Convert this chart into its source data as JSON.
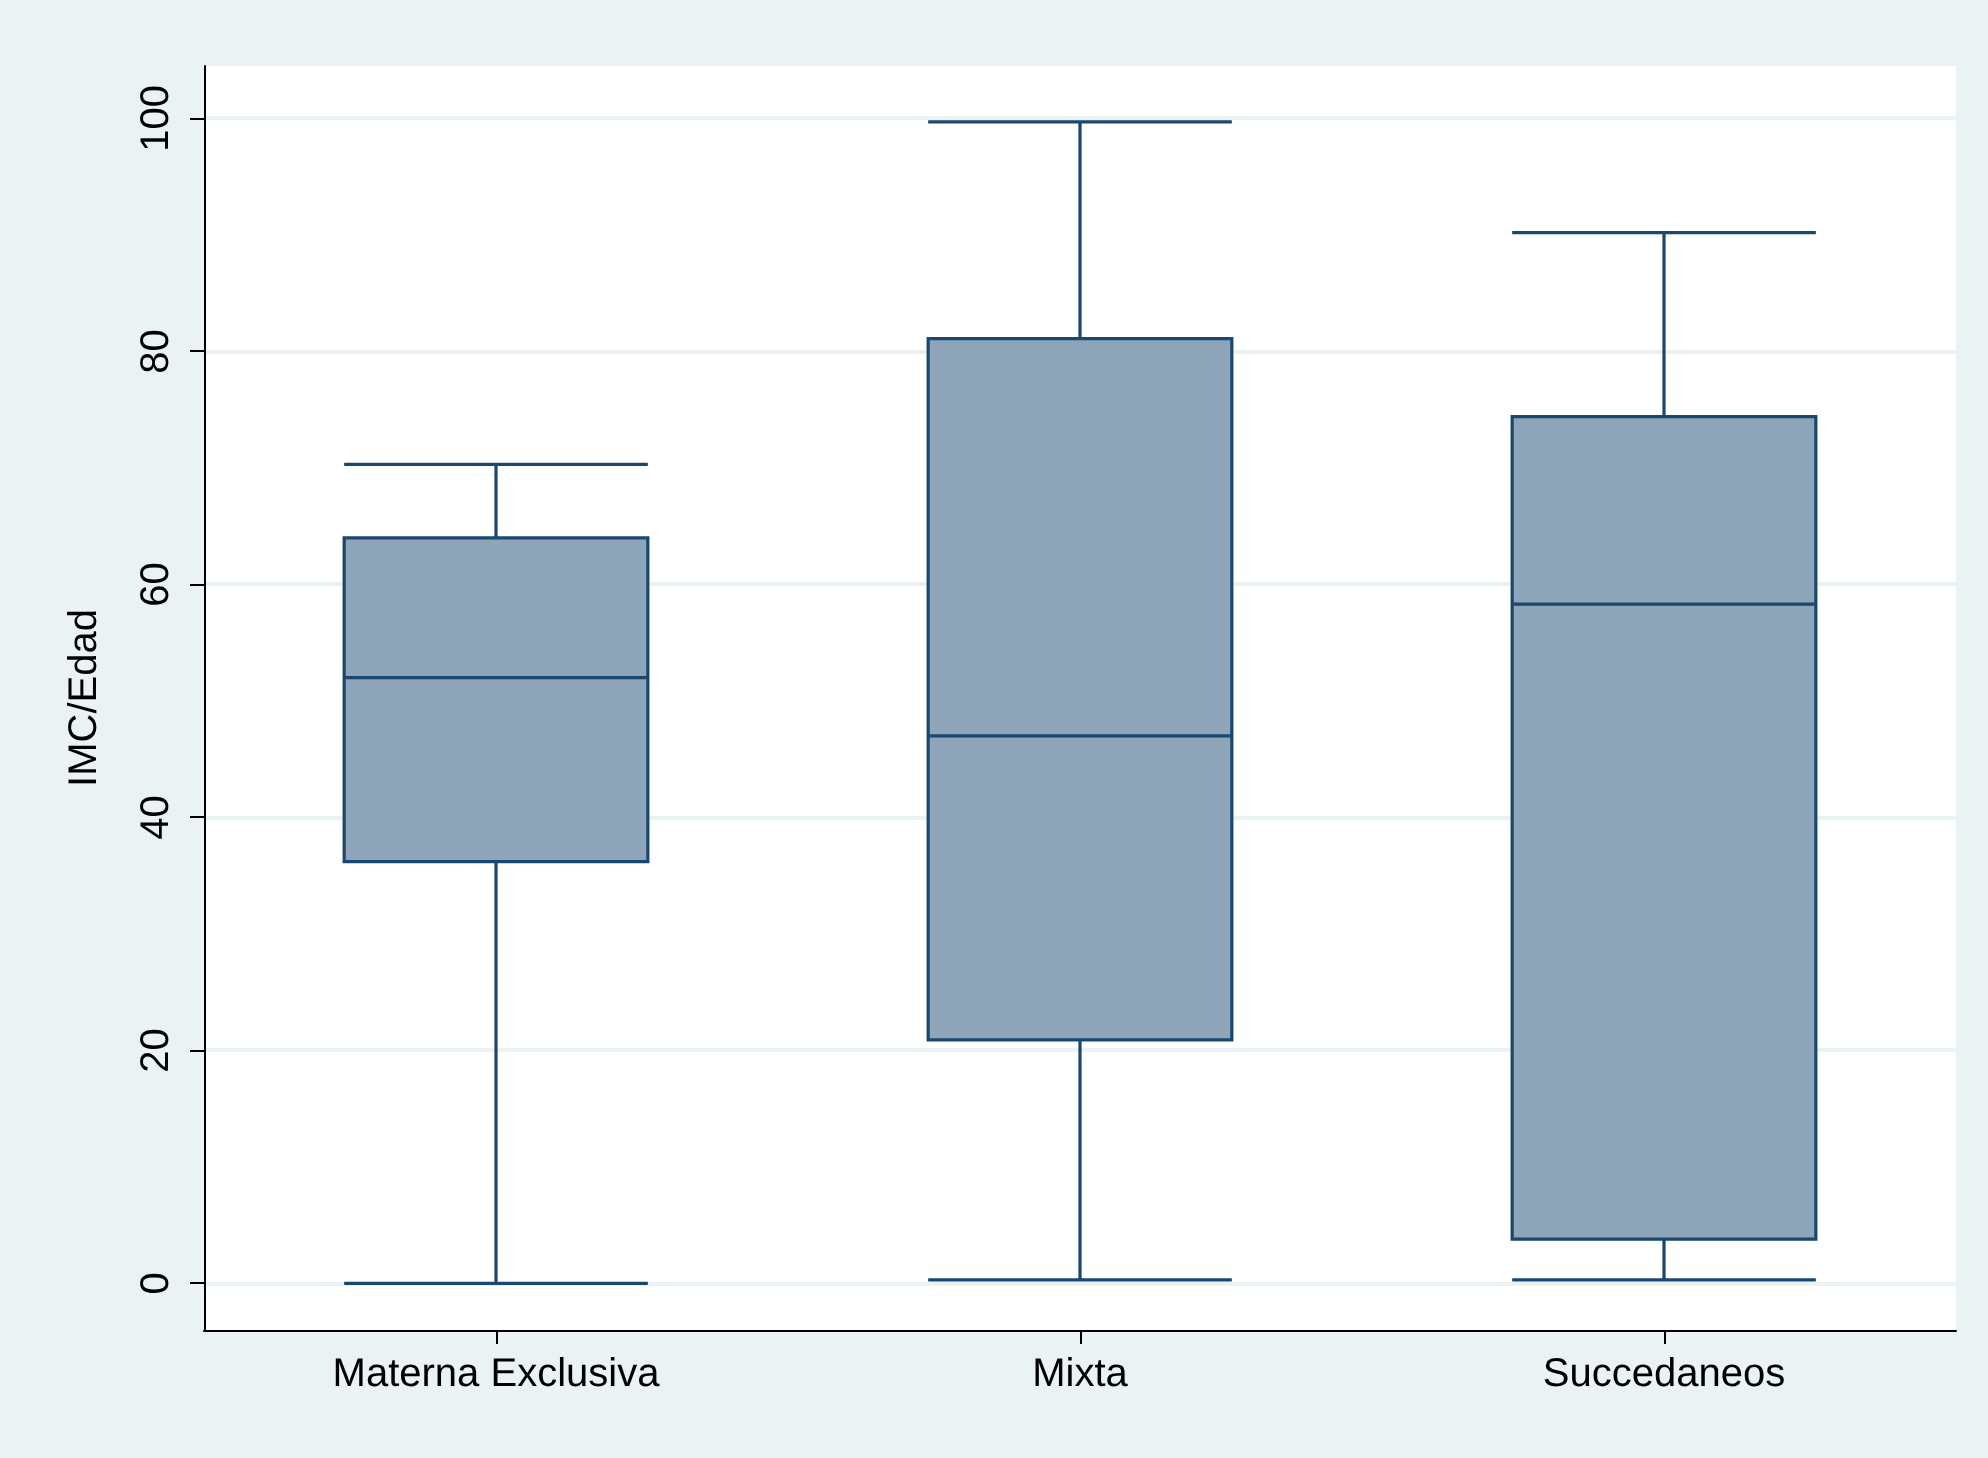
{
  "chart_data": {
    "type": "box",
    "ylabel": "IMC/Edad",
    "categories": [
      "Materna Exclusiva",
      "Mixta",
      "Succedaneos"
    ],
    "boxes": [
      {
        "low": 0,
        "q1": 36.2,
        "median": 52.0,
        "q3": 64.0,
        "high": 70.3
      },
      {
        "low": 0.3,
        "q1": 20.9,
        "median": 47.0,
        "q3": 81.1,
        "high": 99.7
      },
      {
        "low": 0.3,
        "q1": 3.8,
        "median": 58.3,
        "q3": 74.4,
        "high": 90.2
      }
    ],
    "color": "#8ea5b9",
    "ylim": [
      -4,
      104.5
    ],
    "yticks": [
      0,
      20,
      40,
      60,
      80,
      100
    ],
    "grid": "y"
  }
}
